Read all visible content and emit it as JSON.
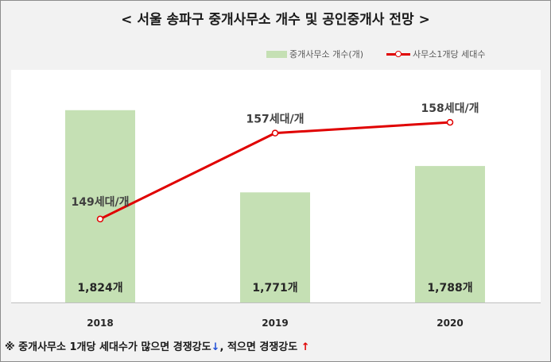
{
  "chart_data": {
    "type": "bar",
    "title": "< 서울 송파구 중개사무소 개수 및 공인중개사 전망 >",
    "categories": [
      "2018",
      "2019",
      "2020"
    ],
    "series": [
      {
        "name": "중개사무소 개수(개)",
        "type": "bar",
        "values": [
          1824,
          1771,
          1788
        ],
        "data_labels": [
          "1,824개",
          "1,771개",
          "1,788개"
        ],
        "color": "#c5e0b4"
      },
      {
        "name": "사무소1개당 세대수",
        "type": "line",
        "values": [
          149,
          157,
          158
        ],
        "data_labels": [
          "149세대/개",
          "157세대/개",
          "158세대/개"
        ],
        "color": "#e00000"
      }
    ],
    "legend_position": "top-right",
    "grid": false
  },
  "footnote": {
    "prefix": "※ 중개사무소 1개당 세대수가 많으면 경쟁강도",
    "arrow_down": "↓",
    "middle": ", 적으면 경쟁강도 ",
    "arrow_up": "↑"
  }
}
